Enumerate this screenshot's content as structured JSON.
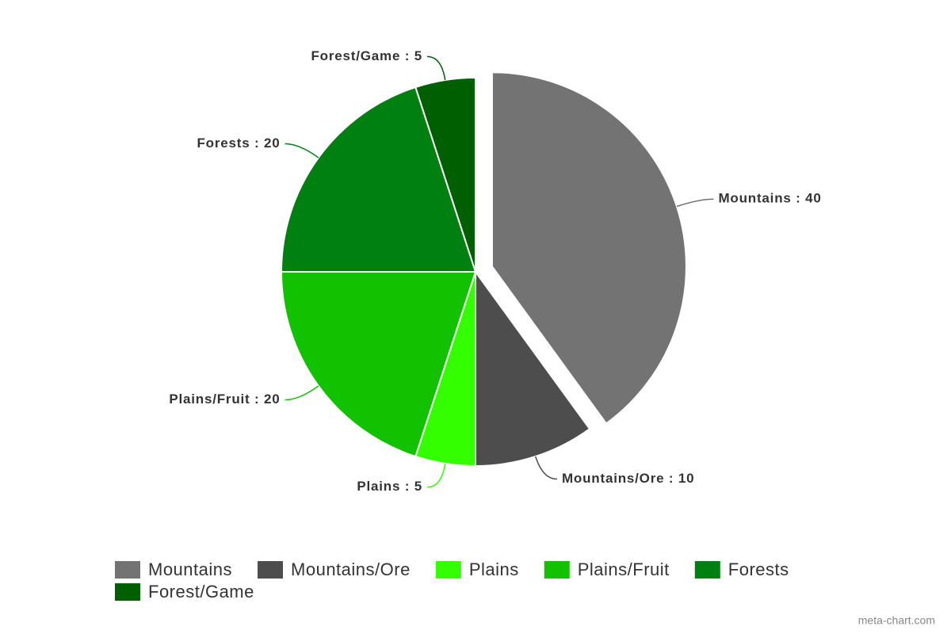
{
  "chart_data": {
    "type": "pie",
    "categories": [
      "Mountains",
      "Mountains/Ore",
      "Plains",
      "Plains/Fruit",
      "Forests",
      "Forest/Game"
    ],
    "values": [
      40,
      10,
      5,
      20,
      20,
      5
    ],
    "value_labels": [
      "Mountains : 40",
      "Mountains/Ore : 10",
      "Plains : 5",
      "Plains/Fruit : 20",
      "Forests : 20",
      "Forest/Game : 5"
    ],
    "colors": [
      "#737373",
      "#4d4d4d",
      "#33ff00",
      "#12c200",
      "#008011",
      "#005f00"
    ],
    "exploded": [
      true,
      false,
      false,
      false,
      false,
      false
    ],
    "legend": "bottom",
    "credit": "meta-chart.com"
  }
}
